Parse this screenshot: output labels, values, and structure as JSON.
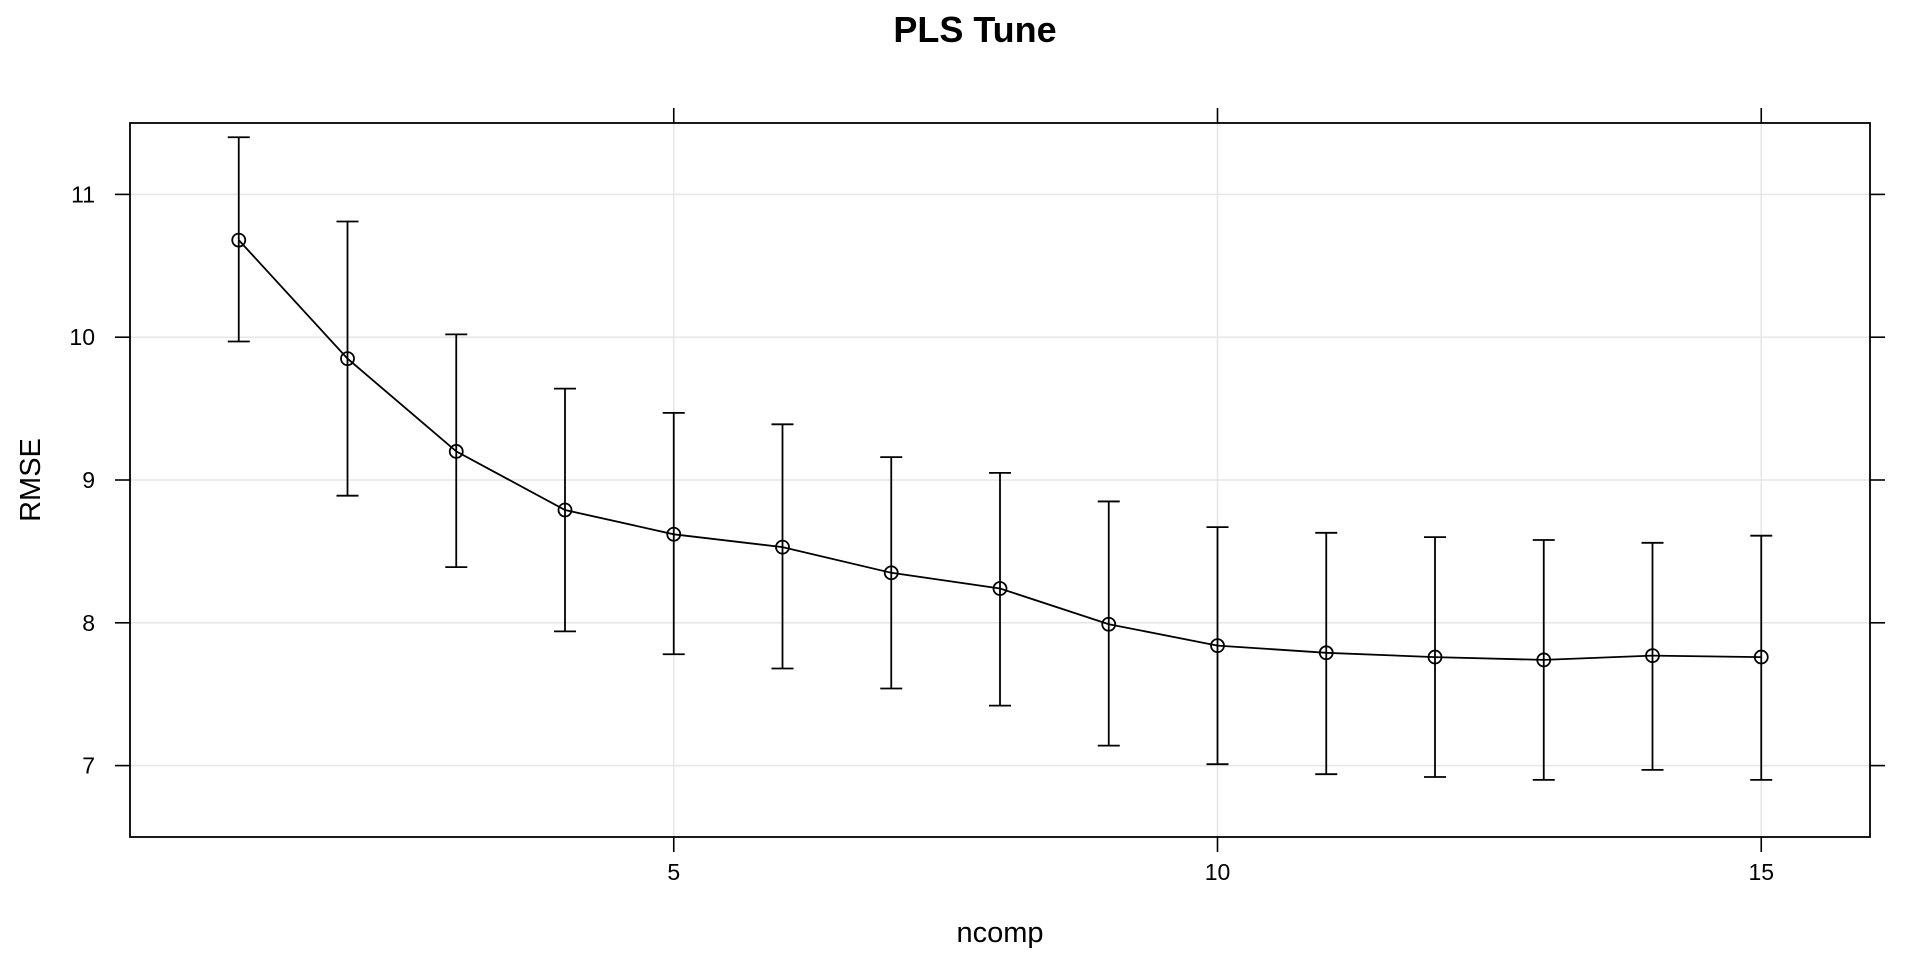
{
  "chart_data": {
    "type": "line",
    "title": "PLS Tune",
    "xlabel": "ncomp",
    "ylabel": "RMSE",
    "xlim": [
      0.0,
      16.0
    ],
    "ylim": [
      6.5,
      11.5
    ],
    "x_ticks": [
      5,
      10,
      15
    ],
    "y_ticks": [
      7,
      8,
      9,
      10,
      11
    ],
    "grid": true,
    "error_bars": true,
    "series": [
      {
        "x": [
          1,
          2,
          3,
          4,
          5,
          6,
          7,
          8,
          9,
          10,
          11,
          12,
          13,
          14,
          15
        ],
        "values": [
          10.68,
          9.85,
          9.2,
          8.79,
          8.62,
          8.53,
          8.35,
          8.24,
          7.99,
          7.84,
          7.79,
          7.76,
          7.74,
          7.77,
          7.76
        ],
        "lower": [
          9.97,
          8.89,
          8.39,
          7.94,
          7.78,
          7.68,
          7.54,
          7.42,
          7.14,
          7.01,
          6.94,
          6.92,
          6.9,
          6.97,
          6.9
        ],
        "upper": [
          11.4,
          10.81,
          10.02,
          9.64,
          9.47,
          9.39,
          9.16,
          9.05,
          8.85,
          8.67,
          8.63,
          8.6,
          8.58,
          8.56,
          8.61
        ]
      }
    ],
    "colors": {
      "line": "#000000",
      "grid": "#e6e6e6",
      "background": "#ffffff"
    }
  }
}
